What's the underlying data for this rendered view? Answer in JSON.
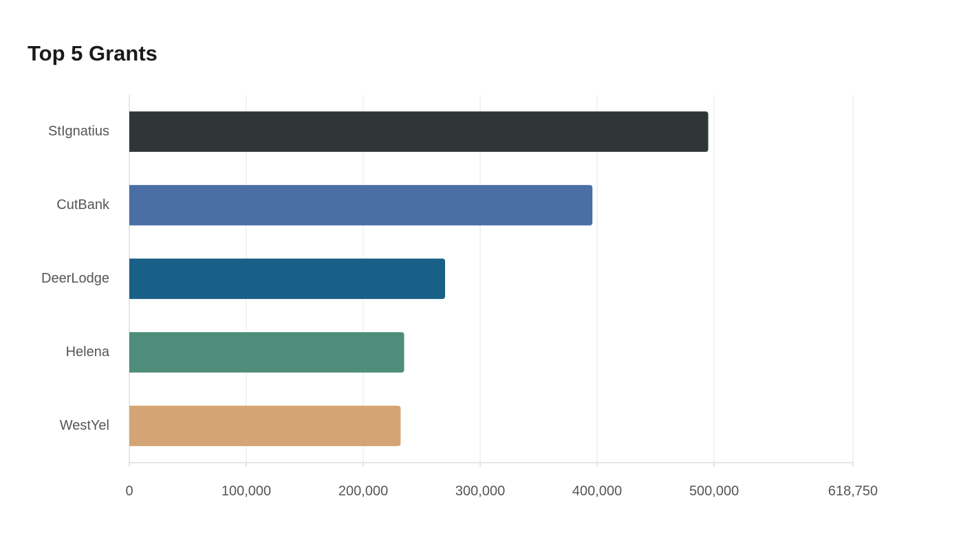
{
  "chart_data": {
    "type": "bar",
    "orientation": "horizontal",
    "title": "Top 5 Grants",
    "categories": [
      "StIgnatius",
      "CutBank",
      "DeerLodge",
      "Helena",
      "WestYel"
    ],
    "values": [
      495000,
      396000,
      270000,
      235000,
      232000
    ],
    "colors": [
      "#2e3638",
      "#4a6fa5",
      "#186087",
      "#4f8d7b",
      "#d4a574"
    ],
    "xlim": [
      0,
      618750
    ],
    "xticks": [
      0,
      {
        "value": 100000,
        "label": "100,000"
      },
      {
        "value": 200000,
        "label": "200,000"
      },
      {
        "value": 300000,
        "label": "300,000"
      },
      {
        "value": 400000,
        "label": "400,000"
      },
      {
        "value": 500000,
        "label": "500,000"
      },
      {
        "value": 618750,
        "label": "618,750"
      }
    ],
    "grid": true
  }
}
